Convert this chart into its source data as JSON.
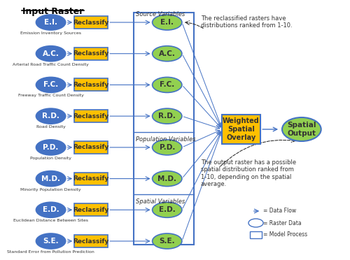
{
  "title": "Input Raster",
  "ellipse_blue_fc": "#4472C4",
  "ellipse_blue_ec": "#4472C4",
  "ellipse_green_fc": "#92D050",
  "ellipse_green_ec": "#4472C4",
  "rect_yellow_fc": "#FFC000",
  "rect_yellow_ec": "#4472C4",
  "rect_box_fc": "white",
  "rect_box_ec": "#4472C4",
  "arrow_color": "#4472C4",
  "left_ellipses": [
    "E.I.",
    "A.C.",
    "F.C.",
    "R.D.",
    "P.D.",
    "M.D.",
    "E.D.",
    "S.E."
  ],
  "left_labels": [
    "Emission Inventory Sources",
    "Arterial Road Traffic Count Density",
    "Freeway Traffic Count Density",
    "Road Density",
    "Population Density",
    "Minority Population Density",
    "Euclidean Distance Between Sites",
    "Standard Error from Pollution Prediction"
  ],
  "right_ellipses": [
    "E.I.",
    "A.C.",
    "F.C.",
    "R.D.",
    "P.D.",
    "M.D.",
    "E.D.",
    "S.E."
  ],
  "group_labels": [
    "Source Variables",
    "Population Variables",
    "Spatial Variables"
  ],
  "group_rows": [
    [
      0,
      1,
      2,
      3
    ],
    [
      4,
      5
    ],
    [
      6,
      7
    ]
  ],
  "wso_label": "Weighted\nSpatial\nOverlay",
  "output_label": "Spatial\nOutput",
  "annotation1": "The reclassified rasters have\ndistributions ranked from 1-10.",
  "annotation2": "The output raster has a possible\nspatial distribution ranked from\n1-10, depending on the spatial\naverage.",
  "legend_items": [
    "= Data Flow",
    "= Raster Data",
    "= Model Process"
  ]
}
